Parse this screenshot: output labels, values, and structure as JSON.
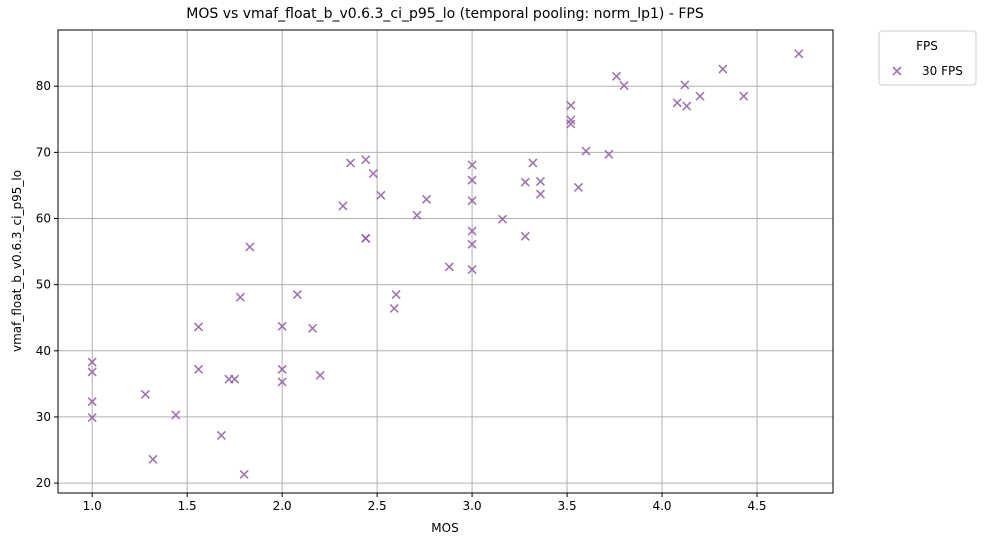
{
  "chart_data": {
    "type": "scatter",
    "title": "MOS vs vmaf_float_b_v0.6.3_ci_p95_lo (temporal pooling: norm_lp1) - FPS",
    "xlabel": "MOS",
    "ylabel": "vmaf_float_b_v0.6.3_ci_p95_lo",
    "xlim": [
      0.82,
      4.9
    ],
    "ylim": [
      18.5,
      88.5
    ],
    "xticks": [
      1.0,
      1.5,
      2.0,
      2.5,
      3.0,
      3.5,
      4.0,
      4.5
    ],
    "xtick_labels": [
      "1.0",
      "1.5",
      "2.0",
      "2.5",
      "3.0",
      "3.5",
      "4.0",
      "4.5"
    ],
    "yticks": [
      20,
      30,
      40,
      50,
      60,
      70,
      80
    ],
    "ytick_labels": [
      "20",
      "30",
      "40",
      "50",
      "60",
      "70",
      "80"
    ],
    "grid": true,
    "legend": {
      "title": "FPS",
      "placement": "outside-top-right"
    },
    "series": [
      {
        "name": "30 FPS",
        "color": "#8e5ea2",
        "marker": "x",
        "points": [
          [
            1.0,
            38.3
          ],
          [
            1.0,
            36.8
          ],
          [
            1.0,
            32.3
          ],
          [
            1.0,
            29.9
          ],
          [
            1.28,
            33.4
          ],
          [
            1.32,
            23.6
          ],
          [
            1.44,
            30.3
          ],
          [
            1.56,
            43.6
          ],
          [
            1.56,
            37.2
          ],
          [
            1.68,
            27.2
          ],
          [
            1.72,
            35.7
          ],
          [
            1.75,
            35.7
          ],
          [
            1.78,
            48.1
          ],
          [
            1.8,
            21.3
          ],
          [
            1.83,
            55.7
          ],
          [
            2.0,
            43.7
          ],
          [
            2.0,
            37.2
          ],
          [
            2.0,
            35.3
          ],
          [
            2.08,
            48.5
          ],
          [
            2.16,
            43.4
          ],
          [
            2.2,
            36.3
          ],
          [
            2.32,
            61.9
          ],
          [
            2.36,
            68.4
          ],
          [
            2.44,
            68.9
          ],
          [
            2.44,
            57.0
          ],
          [
            2.44,
            57.0
          ],
          [
            2.48,
            66.8
          ],
          [
            2.52,
            63.5
          ],
          [
            2.59,
            46.4
          ],
          [
            2.6,
            48.5
          ],
          [
            2.71,
            60.5
          ],
          [
            2.76,
            62.9
          ],
          [
            2.88,
            52.7
          ],
          [
            3.0,
            68.1
          ],
          [
            3.0,
            65.8
          ],
          [
            3.0,
            62.7
          ],
          [
            3.0,
            58.1
          ],
          [
            3.0,
            56.1
          ],
          [
            3.0,
            52.3
          ],
          [
            3.16,
            59.9
          ],
          [
            3.28,
            65.5
          ],
          [
            3.28,
            57.3
          ],
          [
            3.32,
            68.4
          ],
          [
            3.36,
            65.6
          ],
          [
            3.36,
            63.7
          ],
          [
            3.52,
            77.1
          ],
          [
            3.52,
            74.9
          ],
          [
            3.52,
            74.3
          ],
          [
            3.56,
            64.7
          ],
          [
            3.6,
            70.2
          ],
          [
            3.72,
            69.7
          ],
          [
            3.76,
            81.5
          ],
          [
            3.8,
            80.1
          ],
          [
            4.08,
            77.5
          ],
          [
            4.12,
            80.2
          ],
          [
            4.13,
            77.0
          ],
          [
            4.2,
            78.5
          ],
          [
            4.32,
            82.6
          ],
          [
            4.43,
            78.5
          ],
          [
            4.72,
            84.9
          ]
        ]
      }
    ]
  }
}
